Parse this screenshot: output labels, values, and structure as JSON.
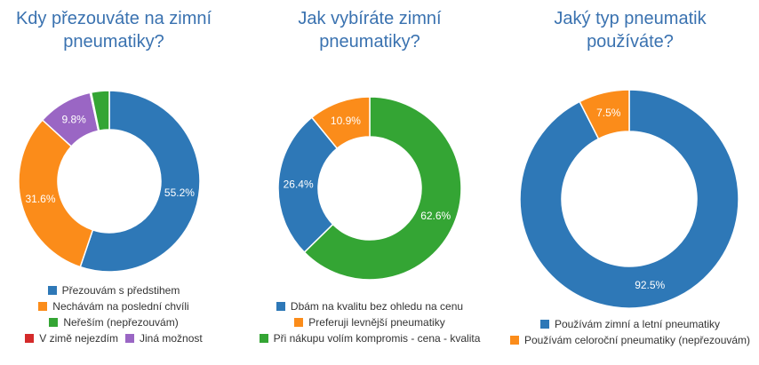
{
  "colors": {
    "blue": "#2e78b7",
    "orange": "#fb8c1a",
    "green": "#34a534",
    "red": "#d42a2a",
    "purple": "#9a66c4",
    "title": "#3a72b0"
  },
  "chart_data": [
    {
      "type": "pie",
      "variant": "donut",
      "title_lines": [
        "Kdy přezouváte na zimní",
        "pneumatiky?"
      ],
      "slices": [
        {
          "label": "Přezouvám s předstihem",
          "value": 55.2,
          "color": "#2e78b7",
          "data_label": "55.2%"
        },
        {
          "label": "Nechávám na poslední chvíli",
          "value": 31.6,
          "color": "#fb8c1a",
          "data_label": "31.6%"
        },
        {
          "label": "Jiná možnost",
          "value": 9.8,
          "color": "#9a66c4",
          "data_label": "9.8%"
        },
        {
          "label": "V zimě nejezdím",
          "value": 0.2,
          "color": "#d42a2a",
          "data_label": ""
        },
        {
          "label": "Neřeším (nepřezouvám)",
          "value": 3.2,
          "color": "#34a534",
          "data_label": ""
        }
      ],
      "legend_rows": [
        [
          "Přezouvám s předstihem"
        ],
        [
          "Nechávám na poslední chvíli"
        ],
        [
          "Neřeším (nepřezouvám)"
        ],
        [
          "V zimě nejezdím",
          "Jiná možnost"
        ]
      ]
    },
    {
      "type": "pie",
      "variant": "donut",
      "title_lines": [
        "Jak vybíráte zimní",
        "pneumatiky?"
      ],
      "slices": [
        {
          "label": "Při nákupu volím kompromis - cena - kvalita",
          "value": 62.6,
          "color": "#34a534",
          "data_label": "62.6%"
        },
        {
          "label": "Dbám na kvalitu bez ohledu na cenu",
          "value": 26.4,
          "color": "#2e78b7",
          "data_label": "26.4%"
        },
        {
          "label": "Preferuji levnější pneumatiky",
          "value": 10.9,
          "color": "#fb8c1a",
          "data_label": "10.9%"
        }
      ],
      "legend_rows": [
        [
          "Dbám na kvalitu bez ohledu na cenu"
        ],
        [
          "Preferuji levnější pneumatiky"
        ],
        [
          "Při nákupu volím kompromis - cena - kvalita"
        ]
      ]
    },
    {
      "type": "pie",
      "variant": "donut",
      "title_lines": [
        "Jaký typ pneumatik",
        "používáte?"
      ],
      "slices": [
        {
          "label": "Používám zimní a letní pneumatiky",
          "value": 92.5,
          "color": "#2e78b7",
          "data_label": "92.5%"
        },
        {
          "label": "Používám celoroční pneumatiky (nepřezouvám)",
          "value": 7.5,
          "color": "#fb8c1a",
          "data_label": "7.5%"
        }
      ],
      "legend_rows": [
        [
          "Používám zimní a letní pneumatiky"
        ],
        [
          "Používám celoroční pneumatiky (nepřezouvám)"
        ]
      ]
    }
  ]
}
